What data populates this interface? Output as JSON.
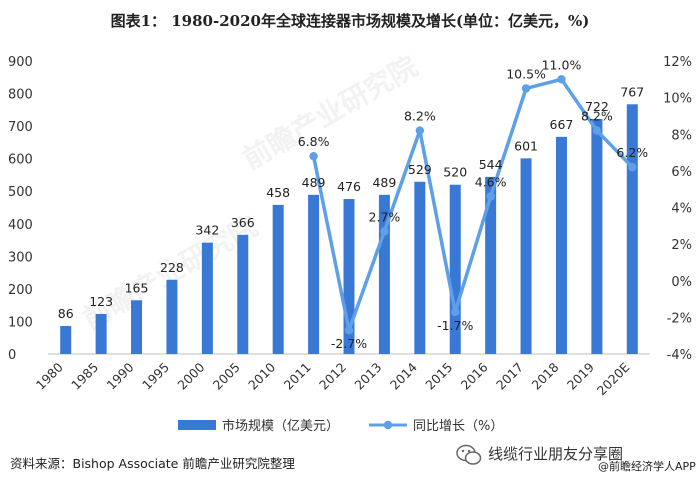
{
  "title": "图表1： 1980-2020年全球连接器市场规模及增长(单位：亿美元，%)",
  "source": "资料来源：Bishop Associate 前瞻产业研究院整理",
  "brand": "线缆行业朋友分享圈",
  "brand_app": "@前瞻经济学人APP",
  "watermark": "前瞻产业研究院",
  "chart_data": {
    "type": "bar",
    "title": "图表1： 1980-2020年全球连接器市场规模及增长(单位：亿美元，%)",
    "categories": [
      "1980",
      "1985",
      "1990",
      "1995",
      "2000",
      "2005",
      "2010",
      "2011",
      "2012",
      "2013",
      "2014",
      "2015",
      "2016",
      "2017",
      "2018",
      "2019",
      "2020E"
    ],
    "series": [
      {
        "name": "市场规模（亿美元）",
        "type": "bar",
        "axis": "left",
        "color": "#3a78d6",
        "values": [
          86,
          123,
          165,
          228,
          342,
          366,
          458,
          489,
          476,
          489,
          529,
          520,
          544,
          601,
          667,
          722,
          767
        ]
      },
      {
        "name": "同比增长（%）",
        "type": "line",
        "axis": "right",
        "color": "#5ea0e8",
        "values": [
          null,
          null,
          null,
          null,
          null,
          null,
          null,
          6.8,
          -2.7,
          2.7,
          8.2,
          -1.7,
          4.6,
          10.5,
          11.0,
          8.2,
          6.2
        ]
      }
    ],
    "y_left": {
      "min": 0,
      "max": 900,
      "ticks": [
        "0",
        "100",
        "200",
        "300",
        "400",
        "500",
        "600",
        "700",
        "800",
        "900"
      ]
    },
    "y_right": {
      "min": -4,
      "max": 12,
      "ticks": [
        "-4%",
        "-2%",
        "0%",
        "2%",
        "4%",
        "6%",
        "8%",
        "10%",
        "12%"
      ]
    },
    "bar_labels": [
      "86",
      "123",
      "165",
      "228",
      "342",
      "366",
      "458",
      "489",
      "476",
      "489",
      "529",
      "520",
      "544",
      "601",
      "667",
      "722",
      "767"
    ],
    "line_labels": [
      "",
      "",
      "",
      "",
      "",
      "",
      "",
      "6.8%",
      "-2.7%",
      "2.7%",
      "8.2%",
      "-1.7%",
      "4.6%",
      "10.5%",
      "11.0%",
      "8.2%",
      "6.2%"
    ],
    "legend": {
      "position": "bottom",
      "entries": [
        "市场规模（亿美元）",
        "同比增长（%）"
      ]
    },
    "grid": false
  }
}
